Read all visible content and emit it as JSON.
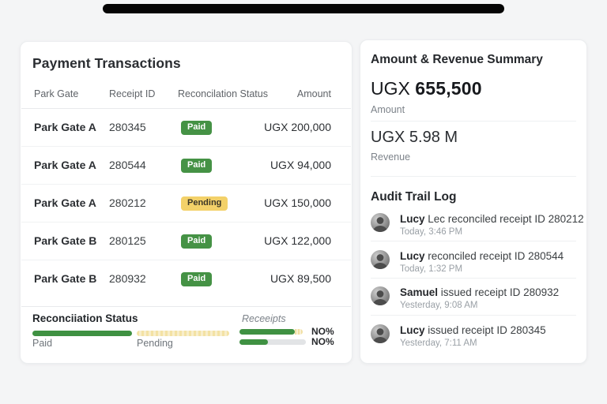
{
  "left_card": {
    "title": "Payment Transactions",
    "table": {
      "columns": [
        "Park Gate",
        "Receipt ID",
        "Reconcilation Status",
        "Amount"
      ],
      "rows": [
        {
          "gate": "Park Gate A",
          "receipt": "280345",
          "status": "Paid",
          "amount": "UGX 200,000"
        },
        {
          "gate": "Park Gate A",
          "receipt": "280544",
          "status": "Paid",
          "amount": "UGX 94,000"
        },
        {
          "gate": "Park Gate A",
          "receipt": "280212",
          "status": "Pending",
          "amount": "UGX 150,000"
        },
        {
          "gate": "Park Gate B",
          "receipt": "280125",
          "status": "Paid",
          "amount": "UGX 122,000"
        },
        {
          "gate": "Park Gate B",
          "receipt": "280932",
          "status": "Paid",
          "amount": "UGX 89,500"
        }
      ]
    },
    "summary": {
      "title": "Reconciiation Status",
      "receipts_label": "Receeipts",
      "paid_label": "Paid",
      "pending_label": "Pending",
      "receipt_bars": [
        {
          "label": "NO%",
          "green_pct": 83,
          "tail_pct": 12
        },
        {
          "label": "NO%",
          "green_pct": 43,
          "tail_pct": 0
        }
      ]
    }
  },
  "right_card": {
    "title": "Amount & Revenue Summary",
    "stats": [
      {
        "currency": "UGX",
        "value": "655,500",
        "label": "Amount"
      },
      {
        "currency": "UGX",
        "value": "5.98 M",
        "label": "Revenue"
      }
    ],
    "audit": {
      "title": "Audit Trail Log",
      "entries": [
        {
          "name": "Lucy",
          "action": "Lec reconciled receipt ID 280212",
          "time": "Today, 3:46 PM"
        },
        {
          "name": "Lucy",
          "action": "reconciled receipt ID 280544",
          "time": "Today, 1:32 PM"
        },
        {
          "name": "Samuel",
          "action": "issued receipt ID 280932",
          "time": "Yesterday, 9:08 AM"
        },
        {
          "name": "Lucy",
          "action": "issued receipt ID 280345",
          "time": "Yesterday, 7:11 AM"
        }
      ]
    }
  },
  "colors": {
    "paid_badge": "#459245",
    "pending_badge": "#f3d169",
    "bar_green": "#3f9142",
    "bar_pending": "#f2e0a2",
    "bar_track_gray": "#e2e4e6",
    "card_bg": "#ffffff",
    "page_bg": "#f4f5f6"
  }
}
